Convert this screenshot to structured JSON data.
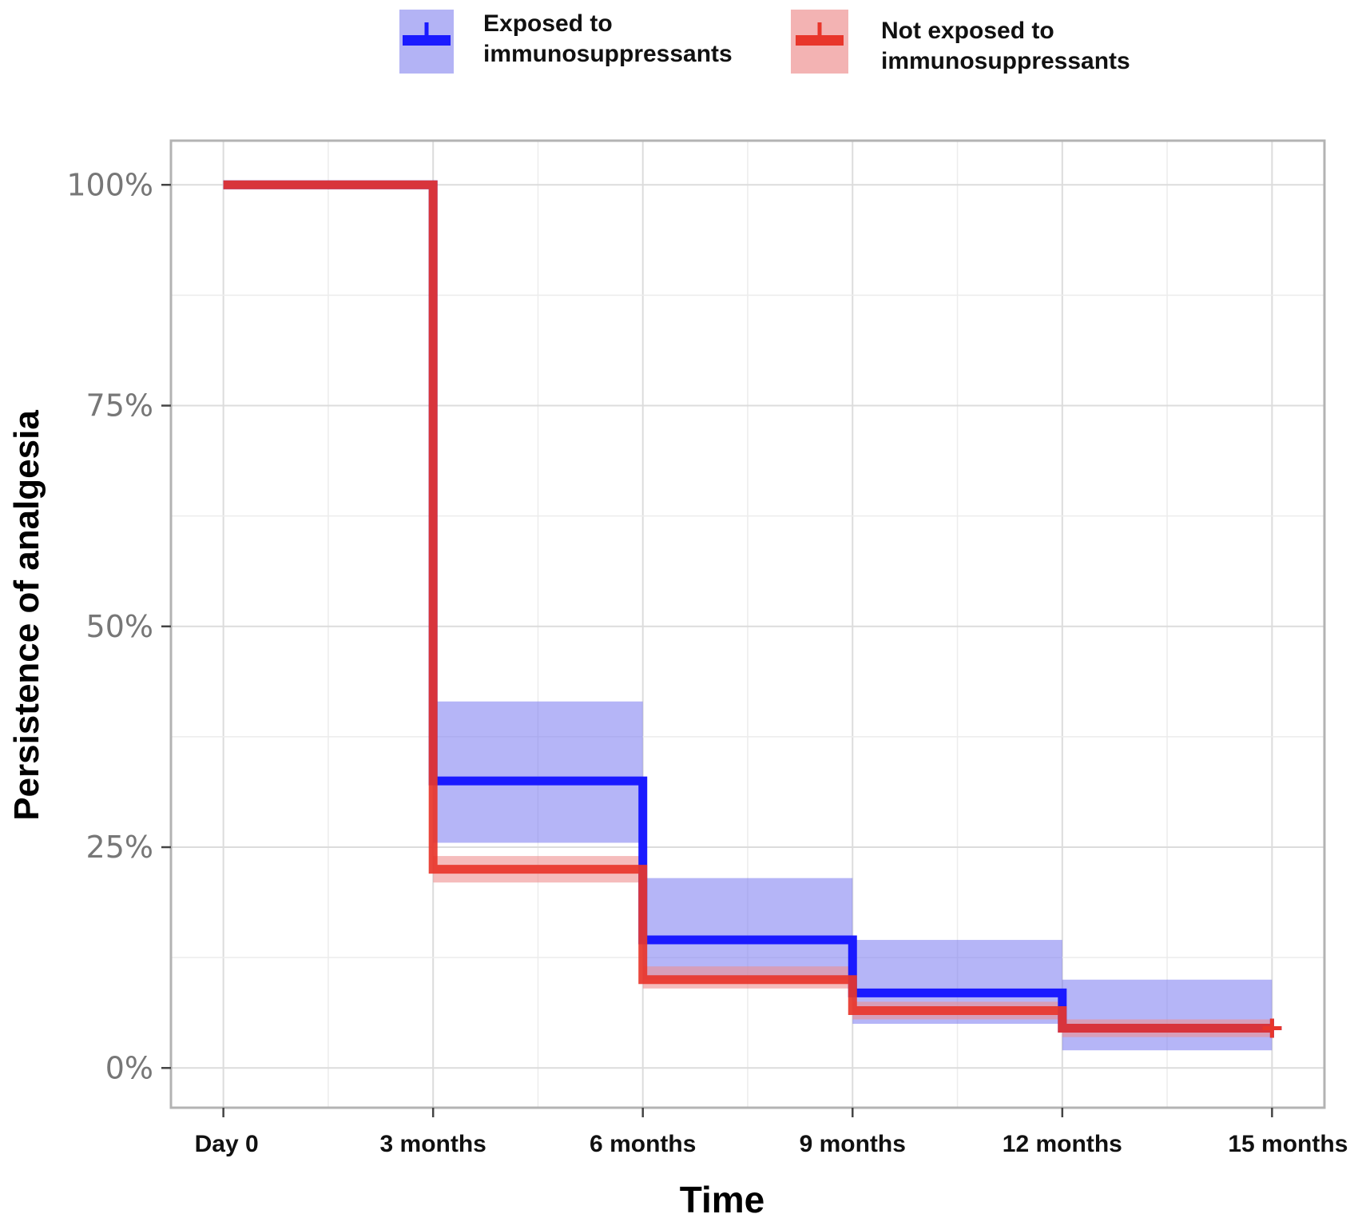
{
  "chart_data": {
    "type": "line",
    "subtype": "kaplan-meier step curve with confidence bands",
    "title": "",
    "xlabel": "Time",
    "ylabel": "Persistence of analgesia",
    "x_tick_labels": [
      "Day 0",
      "3 months",
      "6 months",
      "9 months",
      "12 months",
      "15 months"
    ],
    "x_ticks_months": [
      0,
      3,
      6,
      9,
      12,
      15
    ],
    "y_tick_labels": [
      "0%",
      "25%",
      "50%",
      "75%",
      "100%"
    ],
    "y_ticks": [
      0,
      25,
      50,
      75,
      100
    ],
    "xlim": [
      -0.75,
      15.75
    ],
    "ylim": [
      -4.5,
      105
    ],
    "grid": true,
    "legend_position": "top",
    "series": [
      {
        "name": "Exposed to immunosuppressants",
        "legend_lines": [
          "Exposed to",
          "immunosuppressants"
        ],
        "color": "#1a1aff",
        "band_color": "#6b6bf0",
        "steps": [
          {
            "x0": 0,
            "x1": 3,
            "y": 100
          },
          {
            "x0": 3,
            "x1": 6,
            "y": 32.5,
            "lower": 25.5,
            "upper": 41.5
          },
          {
            "x0": 6,
            "x1": 9,
            "y": 14.5,
            "lower": 10,
            "upper": 21.5
          },
          {
            "x0": 9,
            "x1": 12,
            "y": 8.5,
            "lower": 5,
            "upper": 14.5
          },
          {
            "x0": 12,
            "x1": 15,
            "y": 4.5,
            "lower": 2,
            "upper": 10
          }
        ],
        "censor": {
          "x": 15,
          "y": 4.5
        }
      },
      {
        "name": "Not exposed to immunosuppressants",
        "legend_lines": [
          "Not exposed to",
          "immunosuppressants"
        ],
        "color": "#e8362b",
        "band_color": "#ee9090",
        "steps": [
          {
            "x0": 0,
            "x1": 3,
            "y": 100
          },
          {
            "x0": 3,
            "x1": 6,
            "y": 22.5,
            "lower": 21,
            "upper": 24
          },
          {
            "x0": 6,
            "x1": 9,
            "y": 10,
            "lower": 9,
            "upper": 11.5
          },
          {
            "x0": 9,
            "x1": 12,
            "y": 6.5,
            "lower": 5.5,
            "upper": 7.5
          },
          {
            "x0": 12,
            "x1": 15,
            "y": 4.5,
            "lower": 3.5,
            "upper": 5.5
          }
        ],
        "censor": {
          "x": 15,
          "y": 4.5
        }
      }
    ]
  }
}
